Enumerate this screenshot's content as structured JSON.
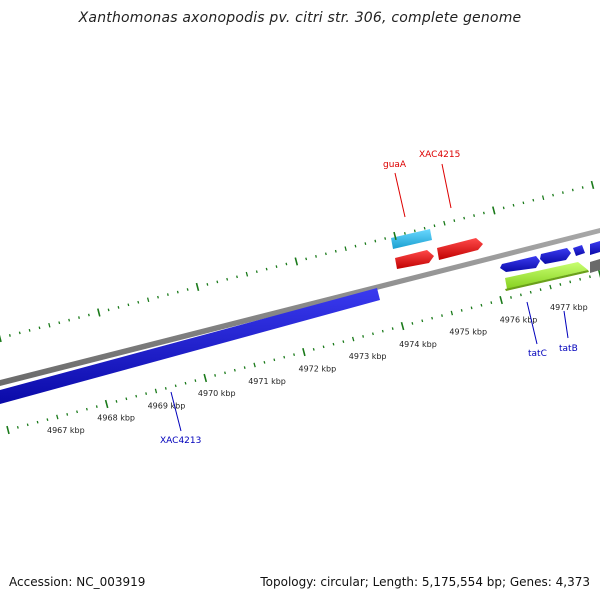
{
  "title": "Xanthomonas axonopodis pv. citri str. 306, complete genome",
  "footer": {
    "accession": "Accession: NC_003919",
    "summary": "Topology: circular; Length: 5,175,554 bp; Genes: 4,373"
  },
  "colors": {
    "backbone": "#808080",
    "tick": "#1a7a1a",
    "forward_cds": "#1414d2",
    "reverse_cds": "#1414d2",
    "guaA_gene": "#2ab8e8",
    "red_gene": "#e81414",
    "green_gene": "#a6f23a",
    "label_red": "#dd0000",
    "label_blue": "#0000bb"
  },
  "scale": {
    "unit": "kbp",
    "labels": [
      {
        "text": "4967 kbp"
      },
      {
        "text": "4968 kbp"
      },
      {
        "text": "4969 kbp"
      },
      {
        "text": "4970 kbp"
      },
      {
        "text": "4971 kbp"
      },
      {
        "text": "4972 kbp"
      },
      {
        "text": "4973 kbp"
      },
      {
        "text": "4974 kbp"
      },
      {
        "text": "4975 kbp"
      },
      {
        "text": "4976 kbp"
      },
      {
        "text": "4977 kbp"
      }
    ]
  },
  "gene_labels": [
    {
      "name": "guaA",
      "color": "red"
    },
    {
      "name": "XAC4215",
      "color": "red"
    },
    {
      "name": "XAC4213",
      "color": "blue"
    },
    {
      "name": "tatC",
      "color": "blue"
    },
    {
      "name": "tatB",
      "color": "blue"
    }
  ]
}
